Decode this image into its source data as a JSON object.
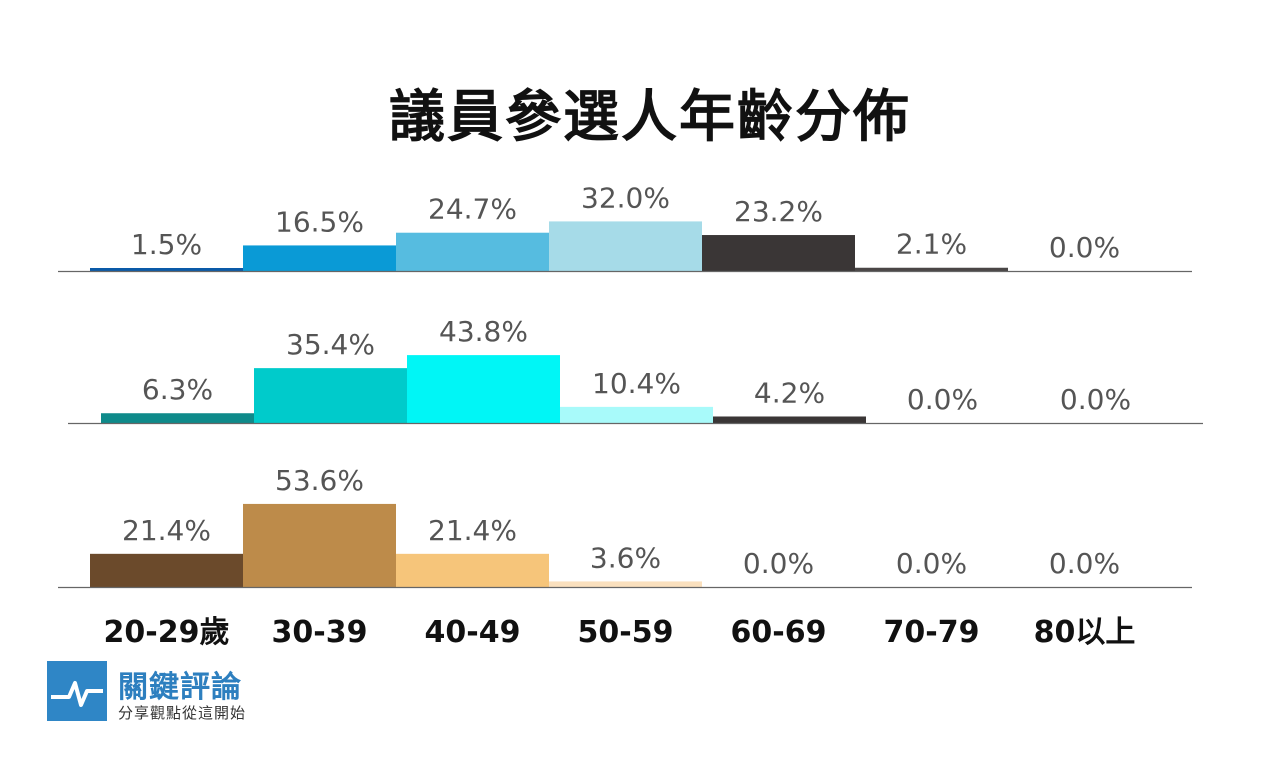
{
  "title": "議員參選人年齡分佈",
  "brand": {
    "name": "關鍵評論",
    "slogan": "分享觀點從這開始",
    "color": "#2f86c6"
  },
  "chart_data": {
    "type": "bar",
    "categories": [
      "20-29歲",
      "30-39",
      "40-49",
      "50-59",
      "60-69",
      "70-79",
      "80以上"
    ],
    "series": [
      {
        "values": [
          1.5,
          16.5,
          24.7,
          32.0,
          23.2,
          2.1,
          0.0
        ],
        "labels": [
          "1.5%",
          "16.5%",
          "24.7%",
          "32.0%",
          "23.2%",
          "2.1%",
          "0.0%"
        ],
        "colors": [
          "#0a5aa8",
          "#0a9ad6",
          "#56bce0",
          "#a6dbe8",
          "#3a3636",
          "#4a4646",
          "#4a4646"
        ]
      },
      {
        "values": [
          6.3,
          35.4,
          43.8,
          10.4,
          4.2,
          0.0,
          0.0
        ],
        "labels": [
          "6.3%",
          "35.4%",
          "43.8%",
          "10.4%",
          "4.2%",
          "0.0%",
          "0.0%"
        ],
        "colors": [
          "#0e8a8a",
          "#00cbcb",
          "#00f6f6",
          "#a8fafa",
          "#3a3636",
          "#3a3636",
          "#3a3636"
        ]
      },
      {
        "values": [
          21.4,
          53.6,
          21.4,
          3.6,
          0.0,
          0.0,
          0.0
        ],
        "labels": [
          "21.4%",
          "53.6%",
          "21.4%",
          "3.6%",
          "0.0%",
          "0.0%",
          "0.0%"
        ],
        "colors": [
          "#6b4a2b",
          "#bd8b4a",
          "#f6c57a",
          "#fae0be",
          "#999999",
          "#999999",
          "#999999"
        ]
      }
    ],
    "grid": false
  }
}
